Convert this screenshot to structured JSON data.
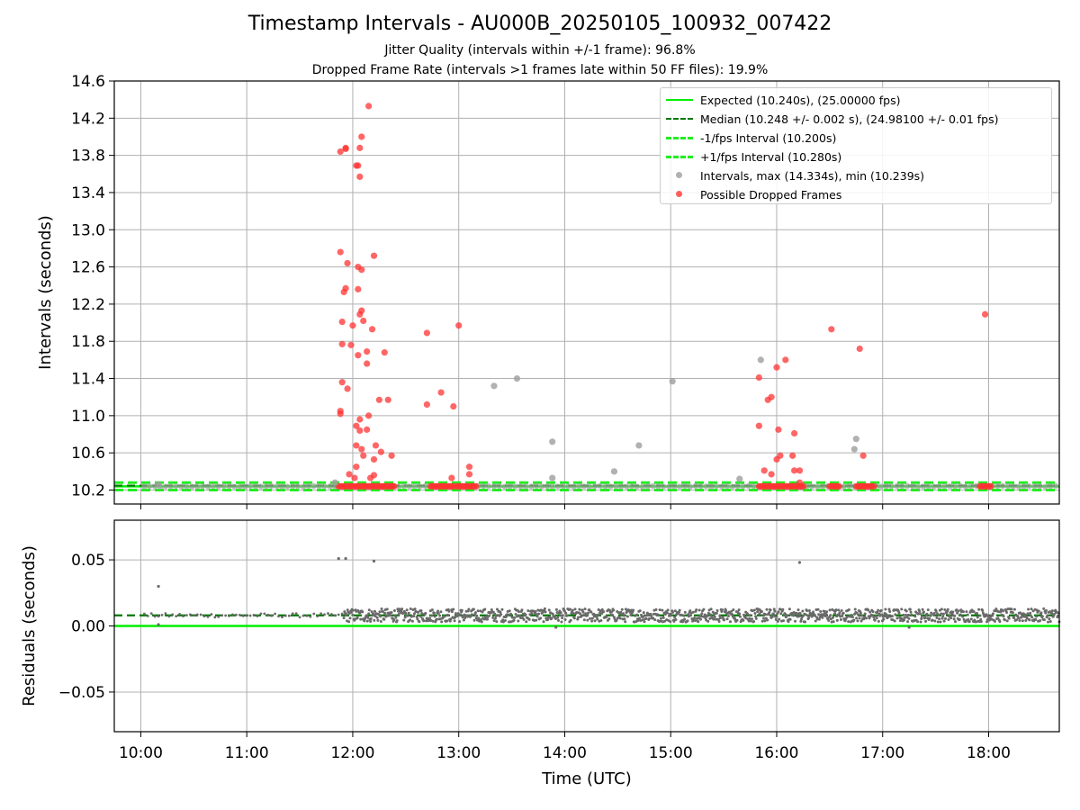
{
  "title": "Timestamp Intervals - AU000B_20250105_100932_007422",
  "subtitle_1": "Jitter Quality (intervals within +/-1 frame): 96.8%",
  "subtitle_2": "Dropped Frame Rate (intervals >1 frames late within 50 FF files): 19.9%",
  "colors": {
    "expected": "#00ee00",
    "median": "#007700",
    "interval_bounds": "#22ee22",
    "intervals": "#9e9e9e",
    "dropped": "#ff3333",
    "residuals": "#6a6a6a"
  },
  "legend": {
    "placement": "top-right",
    "entries": [
      "Expected (10.240s), (25.00000 fps)",
      "Median (10.248 +/- 0.002 s), (24.98100 +/- 0.01 fps)",
      "-1/fps Interval (10.200s)",
      "+1/fps Interval (10.280s)",
      "Intervals, max (14.334s), min (10.239s)",
      "Possible Dropped Frames"
    ]
  },
  "chart_data": [
    {
      "type": "scatter",
      "ylabel": "Intervals (seconds)",
      "xlim": [
        "09:45",
        "18:40"
      ],
      "ylim": [
        10.05,
        14.6
      ],
      "yticks": [
        "10.2",
        "10.6",
        "11.0",
        "11.4",
        "11.8",
        "12.2",
        "12.6",
        "13.0",
        "13.4",
        "13.8",
        "14.2",
        "14.6"
      ],
      "grid": true,
      "reference_lines": {
        "expected": 10.24,
        "median": 10.248,
        "minus_one_frame": 10.2,
        "plus_one_frame": 10.28
      },
      "baseline_interval": 10.24,
      "baseline_range": [
        "10:02",
        "18:40"
      ],
      "baseline_dropped_clusters": [
        [
          "11:52",
          "12:24"
        ],
        [
          "12:44",
          "12:58"
        ],
        [
          "12:59",
          "13:10"
        ],
        [
          "15:50",
          "16:16"
        ],
        [
          "16:30",
          "16:36"
        ],
        [
          "16:45",
          "16:55"
        ],
        [
          "17:55",
          "18:02"
        ]
      ],
      "series": [
        {
          "name": "Intervals, max (14.334s), min (10.239s)",
          "points": [
            [
              "13:20",
              11.32
            ],
            [
              "13:33",
              11.4
            ],
            [
              "13:53",
              10.72
            ],
            [
              "13:53",
              10.33
            ],
            [
              "14:28",
              10.4
            ],
            [
              "14:42",
              10.68
            ],
            [
              "15:01",
              11.37
            ],
            [
              "15:39",
              10.32
            ],
            [
              "15:51",
              11.6
            ],
            [
              "16:44",
              10.64
            ],
            [
              "16:45",
              10.75
            ],
            [
              "10:10",
              10.26
            ],
            [
              "11:50",
              10.28
            ]
          ]
        },
        {
          "name": "Possible Dropped Frames",
          "points": [
            [
              "11:53",
              13.84
            ],
            [
              "11:56",
              13.88
            ],
            [
              "11:56",
              13.87
            ],
            [
              "12:02",
              13.69
            ],
            [
              "12:03",
              13.69
            ],
            [
              "12:04",
              13.57
            ],
            [
              "12:04",
              13.88
            ],
            [
              "12:05",
              14.0
            ],
            [
              "12:09",
              14.33
            ],
            [
              "11:53",
              12.76
            ],
            [
              "11:57",
              12.64
            ],
            [
              "12:03",
              12.6
            ],
            [
              "12:05",
              12.57
            ],
            [
              "12:12",
              12.72
            ],
            [
              "11:55",
              12.33
            ],
            [
              "11:56",
              12.37
            ],
            [
              "12:03",
              12.36
            ],
            [
              "12:04",
              12.09
            ],
            [
              "12:05",
              12.13
            ],
            [
              "12:06",
              12.02
            ],
            [
              "11:54",
              12.01
            ],
            [
              "12:00",
              11.97
            ],
            [
              "12:11",
              11.93
            ],
            [
              "11:54",
              11.77
            ],
            [
              "11:59",
              11.76
            ],
            [
              "12:03",
              11.65
            ],
            [
              "12:08",
              11.69
            ],
            [
              "12:08",
              11.56
            ],
            [
              "12:18",
              11.68
            ],
            [
              "11:54",
              11.36
            ],
            [
              "11:57",
              11.29
            ],
            [
              "12:15",
              11.17
            ],
            [
              "12:20",
              11.17
            ],
            [
              "11:53",
              11.05
            ],
            [
              "11:53",
              11.02
            ],
            [
              "12:04",
              10.96
            ],
            [
              "12:09",
              11.0
            ],
            [
              "12:02",
              10.89
            ],
            [
              "12:04",
              10.84
            ],
            [
              "12:08",
              10.85
            ],
            [
              "12:02",
              10.68
            ],
            [
              "12:05",
              10.64
            ],
            [
              "12:06",
              10.57
            ],
            [
              "12:13",
              10.68
            ],
            [
              "12:16",
              10.61
            ],
            [
              "12:22",
              10.57
            ],
            [
              "12:12",
              10.53
            ],
            [
              "12:02",
              10.45
            ],
            [
              "11:58",
              10.37
            ],
            [
              "12:01",
              10.33
            ],
            [
              "12:10",
              10.33
            ],
            [
              "12:12",
              10.36
            ],
            [
              "12:42",
              11.89
            ],
            [
              "13:00",
              11.97
            ],
            [
              "12:42",
              11.12
            ],
            [
              "12:50",
              11.25
            ],
            [
              "12:57",
              11.1
            ],
            [
              "12:56",
              10.33
            ],
            [
              "13:06",
              10.45
            ],
            [
              "13:06",
              10.37
            ],
            [
              "15:50",
              11.41
            ],
            [
              "15:55",
              11.17
            ],
            [
              "15:57",
              11.2
            ],
            [
              "16:00",
              11.52
            ],
            [
              "16:05",
              11.6
            ],
            [
              "15:50",
              10.89
            ],
            [
              "16:01",
              10.85
            ],
            [
              "16:10",
              10.81
            ],
            [
              "16:00",
              10.53
            ],
            [
              "16:02",
              10.57
            ],
            [
              "16:09",
              10.57
            ],
            [
              "15:53",
              10.41
            ],
            [
              "15:57",
              10.37
            ],
            [
              "16:10",
              10.41
            ],
            [
              "16:13",
              10.41
            ],
            [
              "16:13",
              10.28
            ],
            [
              "16:31",
              11.93
            ],
            [
              "16:47",
              11.72
            ],
            [
              "16:49",
              10.57
            ],
            [
              "17:58",
              12.09
            ]
          ]
        }
      ]
    },
    {
      "type": "scatter",
      "xlabel": "Time (UTC)",
      "ylabel": "Residuals (seconds)",
      "xlim": [
        "09:45",
        "18:40"
      ],
      "ylim": [
        -0.08,
        0.08
      ],
      "xticks": [
        "10:00",
        "11:00",
        "12:00",
        "13:00",
        "14:00",
        "15:00",
        "16:00",
        "17:00",
        "18:00"
      ],
      "yticks": [
        "0.05",
        "0.00",
        "−0.05"
      ],
      "grid": true,
      "reference_lines": {
        "expected": 0.0,
        "median": 0.008
      },
      "dense_band": {
        "center": 0.008,
        "spread": 0.005,
        "start": "11:55",
        "end": "18:40"
      },
      "sparse_band": {
        "center": 0.008,
        "spread": 0.0015,
        "start": "10:02",
        "end": "11:55"
      },
      "outliers": [
        [
          "10:10",
          0.03
        ],
        [
          "10:10",
          0.001
        ],
        [
          "11:52",
          0.051
        ],
        [
          "11:56",
          0.051
        ],
        [
          "12:12",
          0.049
        ],
        [
          "16:13",
          0.048
        ],
        [
          "13:55",
          -0.001
        ],
        [
          "17:15",
          -0.001
        ]
      ]
    }
  ]
}
